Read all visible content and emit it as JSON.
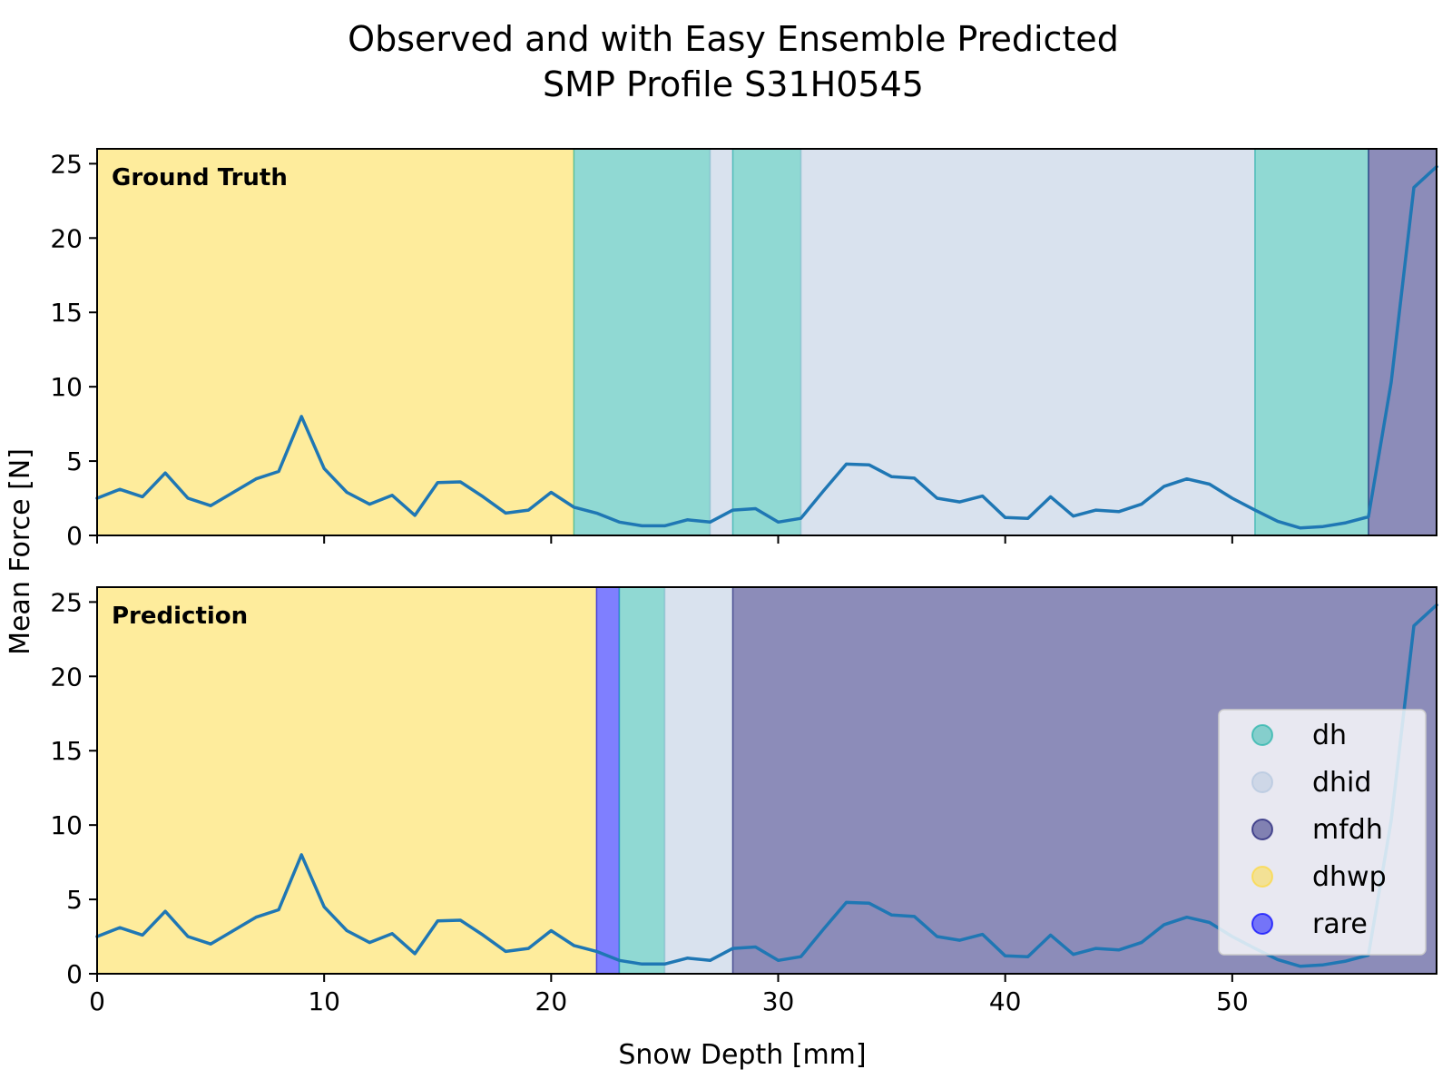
{
  "chart_data": {
    "type": "line",
    "title_line1": "Observed and with Easy Ensemble Predicted",
    "title_line2": "SMP Profile S31H0545",
    "xlabel": "Snow Depth [mm]",
    "ylabel": "Mean Force [N]",
    "xlim": [
      0,
      59
    ],
    "ylim": [
      0,
      26
    ],
    "xticks": [
      0,
      10,
      20,
      30,
      40,
      50
    ],
    "yticks": [
      0,
      5,
      10,
      15,
      20,
      25
    ],
    "colors": {
      "dh": "#22b3a8",
      "dhid": "#b3c6de",
      "mfdh": "#1a1a73",
      "dhwp": "#fdd93a",
      "rare": "#0000ff",
      "line": "#1f77b4"
    },
    "legend": {
      "position": "lower-right",
      "entries": [
        "dh",
        "dhid",
        "mfdh",
        "dhwp",
        "rare"
      ]
    },
    "series": {
      "x": [
        0,
        1,
        2,
        3,
        4,
        5,
        6,
        7,
        8,
        9,
        10,
        11,
        12,
        13,
        14,
        15,
        16,
        17,
        18,
        19,
        20,
        21,
        22,
        23,
        24,
        25,
        26,
        27,
        28,
        29,
        30,
        31,
        32,
        33,
        34,
        35,
        36,
        37,
        38,
        39,
        40,
        41,
        42,
        43,
        44,
        45,
        46,
        47,
        48,
        49,
        50,
        51,
        52,
        53,
        54,
        55,
        56,
        57,
        58,
        59
      ],
      "values": [
        2.5,
        3.1,
        2.6,
        4.2,
        2.5,
        2.0,
        2.9,
        3.8,
        4.3,
        8.0,
        4.5,
        2.9,
        2.1,
        2.7,
        1.35,
        3.55,
        3.6,
        2.6,
        1.5,
        1.7,
        2.9,
        1.9,
        1.5,
        0.9,
        0.65,
        0.65,
        1.05,
        0.9,
        1.7,
        1.8,
        0.9,
        1.15,
        3.0,
        4.8,
        4.75,
        3.95,
        3.85,
        2.5,
        2.25,
        2.65,
        1.2,
        1.15,
        2.6,
        1.3,
        1.7,
        1.6,
        2.1,
        3.3,
        3.8,
        3.45,
        2.5,
        1.7,
        0.95,
        0.5,
        0.6,
        0.85,
        1.25,
        10.3,
        23.4,
        24.8
      ]
    },
    "panels": [
      {
        "label": "Ground Truth",
        "segments": [
          {
            "start": 0,
            "end": 21,
            "class": "dhwp"
          },
          {
            "start": 21,
            "end": 27,
            "class": "dh"
          },
          {
            "start": 27,
            "end": 28,
            "class": "dhid"
          },
          {
            "start": 28,
            "end": 31,
            "class": "dh"
          },
          {
            "start": 31,
            "end": 51,
            "class": "dhid"
          },
          {
            "start": 51,
            "end": 56,
            "class": "dh"
          },
          {
            "start": 56,
            "end": 59,
            "class": "mfdh"
          }
        ]
      },
      {
        "label": "Prediction",
        "segments": [
          {
            "start": 0,
            "end": 22,
            "class": "dhwp"
          },
          {
            "start": 22,
            "end": 23,
            "class": "rare"
          },
          {
            "start": 23,
            "end": 25,
            "class": "dh"
          },
          {
            "start": 25,
            "end": 28,
            "class": "dhid"
          },
          {
            "start": 28,
            "end": 59,
            "class": "mfdh"
          }
        ]
      }
    ]
  }
}
